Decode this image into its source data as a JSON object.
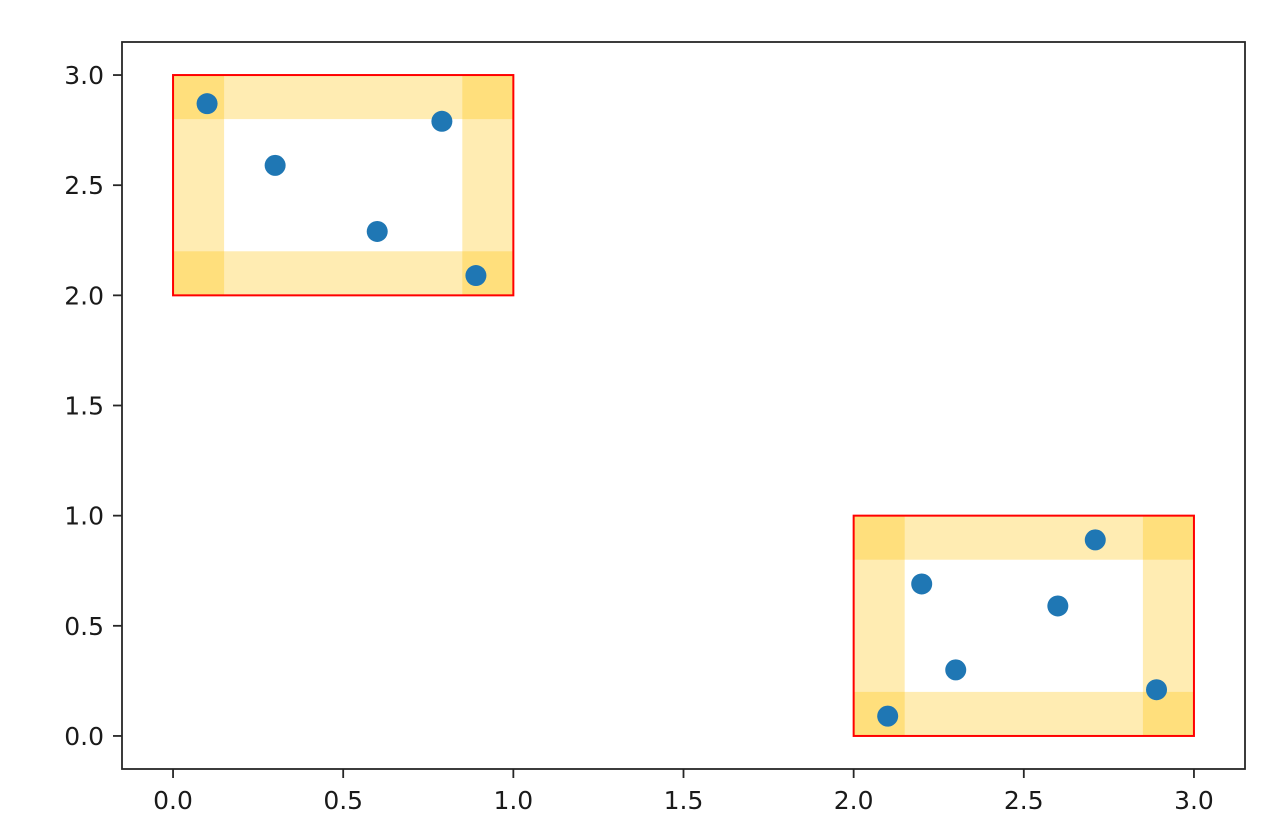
{
  "chart_data": {
    "type": "scatter",
    "title": "",
    "xlabel": "",
    "ylabel": "",
    "xlim": [
      -0.15,
      3.15
    ],
    "ylim": [
      -0.15,
      3.15
    ],
    "x_ticks": [
      0.0,
      0.5,
      1.0,
      1.5,
      2.0,
      2.5,
      3.0
    ],
    "x_tick_labels": [
      "0.0",
      "0.5",
      "1.0",
      "1.5",
      "2.0",
      "2.5",
      "3.0"
    ],
    "y_ticks": [
      0.0,
      0.5,
      1.0,
      1.5,
      2.0,
      2.5,
      3.0
    ],
    "y_tick_labels": [
      "0.0",
      "0.5",
      "1.0",
      "1.5",
      "2.0",
      "2.5",
      "3.0"
    ],
    "grid": false,
    "legend": "none",
    "points": [
      {
        "x": 0.1,
        "y": 2.87
      },
      {
        "x": 0.3,
        "y": 2.59
      },
      {
        "x": 0.6,
        "y": 2.29
      },
      {
        "x": 0.79,
        "y": 2.79
      },
      {
        "x": 0.89,
        "y": 2.09
      },
      {
        "x": 2.1,
        "y": 0.09
      },
      {
        "x": 2.2,
        "y": 0.69
      },
      {
        "x": 2.3,
        "y": 0.3
      },
      {
        "x": 2.6,
        "y": 0.59
      },
      {
        "x": 2.71,
        "y": 0.89
      },
      {
        "x": 2.89,
        "y": 0.21
      }
    ],
    "boxes": [
      {
        "x0": 0.0,
        "y0": 2.0,
        "x1": 1.0,
        "y1": 3.0,
        "band_width": 0.15,
        "band_height": 0.2
      },
      {
        "x0": 2.0,
        "y0": 0.0,
        "x1": 3.0,
        "y1": 1.0,
        "band_width": 0.15,
        "band_height": 0.2
      }
    ],
    "colors": {
      "points": "#1f77b4",
      "box_edge": "#ff0000",
      "band_fill": "#ffc000",
      "axes": "#262626"
    }
  }
}
